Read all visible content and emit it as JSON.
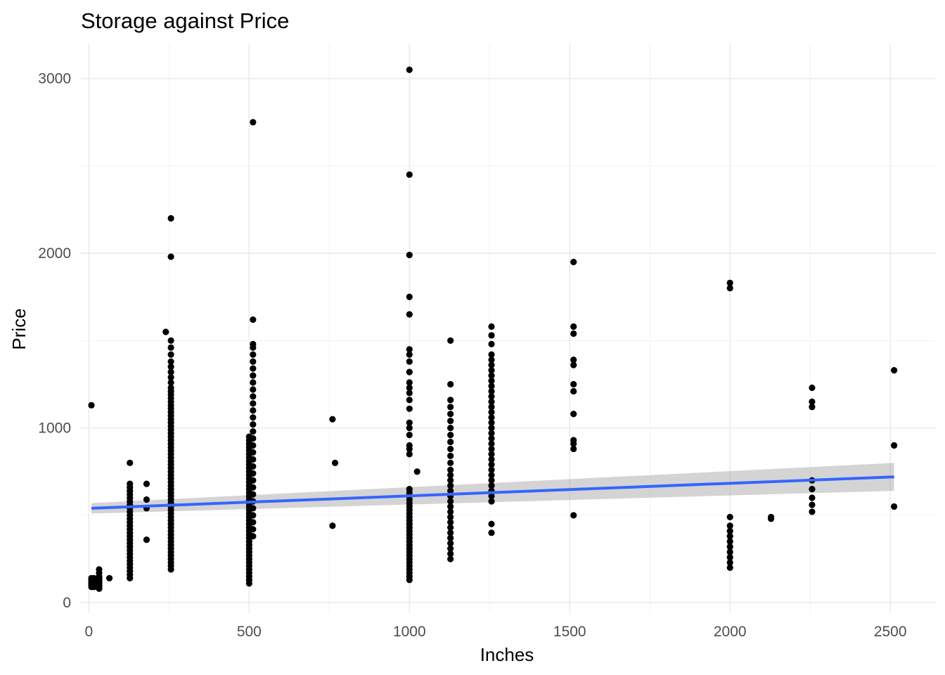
{
  "chart_data": {
    "type": "scatter",
    "title": "Storage against Price",
    "xlabel": "Inches",
    "ylabel": "Price",
    "xlim": [
      -25,
      2640
    ],
    "ylim": [
      -60,
      3200
    ],
    "x_ticks": [
      0,
      500,
      1000,
      1500,
      2000,
      2500
    ],
    "x_tick_labels": [
      "0",
      "500",
      "1000",
      "1500",
      "2000",
      "2500"
    ],
    "y_ticks": [
      0,
      1000,
      2000,
      3000
    ],
    "y_tick_labels": [
      "0",
      "1000",
      "2000",
      "3000"
    ],
    "x_minor_ticks": [
      250,
      750,
      1250,
      1750,
      2250
    ],
    "y_minor_ticks": [
      500,
      1500,
      2500
    ],
    "grid": true,
    "point_color": "#000000",
    "columns": [
      {
        "x": 8,
        "y": [
          90,
          100,
          110,
          120,
          130,
          140,
          1130
        ]
      },
      {
        "x": 16,
        "y": [
          90,
          100,
          110,
          120,
          130,
          140
        ]
      },
      {
        "x": 32,
        "y": [
          80,
          90,
          100,
          110,
          120,
          130,
          140,
          150,
          170,
          190
        ]
      },
      {
        "x": 64,
        "y": [
          140
        ]
      },
      {
        "x": 128,
        "y": [
          140,
          160,
          180,
          200,
          220,
          240,
          260,
          280,
          300,
          320,
          340,
          360,
          380,
          400,
          420,
          440,
          460,
          480,
          500,
          520,
          540,
          560,
          580,
          600,
          620,
          640,
          660,
          680,
          800
        ]
      },
      {
        "x": 180,
        "y": [
          360,
          540,
          590,
          680
        ]
      },
      {
        "x": 256,
        "y": [
          190,
          210,
          230,
          250,
          270,
          290,
          310,
          330,
          350,
          370,
          390,
          410,
          430,
          450,
          470,
          490,
          510,
          530,
          550,
          570,
          590,
          610,
          630,
          650,
          670,
          690,
          710,
          730,
          750,
          770,
          790,
          810,
          830,
          850,
          870,
          890,
          910,
          930,
          950,
          970,
          990,
          1010,
          1030,
          1050,
          1070,
          1090,
          1110,
          1130,
          1150,
          1170,
          1190,
          1210,
          1230,
          1260,
          1290,
          1320,
          1350,
          1380,
          1420,
          1460,
          1500,
          1980,
          2200
        ]
      },
      {
        "x": 240,
        "y": [
          1550
        ]
      },
      {
        "x": 500,
        "y": [
          110,
          130,
          150,
          170,
          190,
          210,
          230,
          250,
          270,
          290,
          310,
          330,
          350,
          370,
          390,
          410,
          430,
          450,
          470,
          490,
          510,
          530,
          550,
          570,
          590,
          610,
          630,
          650,
          670,
          690,
          710,
          730,
          750,
          770,
          790,
          810,
          830,
          850,
          870,
          890,
          910,
          930,
          950
        ]
      },
      {
        "x": 512,
        "y": [
          380,
          420,
          460,
          500,
          540,
          580,
          620,
          660,
          700,
          740,
          780,
          820,
          860,
          900,
          940,
          980,
          1020,
          1060,
          1100,
          1140,
          1180,
          1220,
          1260,
          1300,
          1340,
          1380,
          1420,
          1460,
          1480,
          1620,
          2750
        ]
      },
      {
        "x": 760,
        "y": [
          440,
          1050
        ]
      },
      {
        "x": 768,
        "y": [
          800
        ]
      },
      {
        "x": 1000,
        "y": [
          130,
          150,
          170,
          190,
          210,
          230,
          250,
          270,
          290,
          310,
          330,
          350,
          370,
          390,
          410,
          430,
          450,
          470,
          490,
          510,
          530,
          550,
          570,
          590,
          610,
          630,
          650,
          850,
          880,
          900,
          960,
          1000,
          1030,
          1110,
          1160,
          1200,
          1230,
          1260,
          1320,
          1380,
          1420,
          1450,
          1650,
          1750,
          1990,
          2450,
          3050
        ]
      },
      {
        "x": 1024,
        "y": [
          750
        ]
      },
      {
        "x": 1128,
        "y": [
          250,
          280,
          310,
          340,
          370,
          400,
          430,
          460,
          490,
          520,
          550,
          580,
          610,
          640,
          670,
          700,
          730,
          760,
          800,
          840,
          880,
          920,
          960,
          1000,
          1040,
          1080,
          1120,
          1160,
          1250,
          1500
        ]
      },
      {
        "x": 1256,
        "y": [
          400,
          450,
          580,
          610,
          640,
          670,
          700,
          730,
          760,
          790,
          820,
          850,
          880,
          910,
          940,
          970,
          1000,
          1030,
          1060,
          1090,
          1120,
          1150,
          1180,
          1210,
          1240,
          1270,
          1300,
          1330,
          1360,
          1390,
          1420,
          1480,
          1530,
          1580
        ]
      },
      {
        "x": 1512,
        "y": [
          500,
          880,
          910,
          930,
          1080,
          1210,
          1250,
          1360,
          1390,
          1540,
          1580,
          1950
        ]
      },
      {
        "x": 2000,
        "y": [
          200,
          230,
          260,
          290,
          320,
          350,
          380,
          410,
          440,
          490,
          1800,
          1830
        ]
      },
      {
        "x": 2128,
        "y": [
          480,
          490
        ]
      },
      {
        "x": 2256,
        "y": [
          520,
          560,
          600,
          650,
          700,
          1120,
          1150,
          1230
        ]
      },
      {
        "x": 2512,
        "y": [
          550,
          900,
          1330
        ]
      }
    ],
    "trend": {
      "method": "lm",
      "color": "#3366ff",
      "ribbon_color": "#999999",
      "x": [
        8,
        2512
      ],
      "y": [
        540,
        720
      ],
      "ymin": [
        510,
        640
      ],
      "ymax": [
        570,
        800
      ]
    }
  }
}
